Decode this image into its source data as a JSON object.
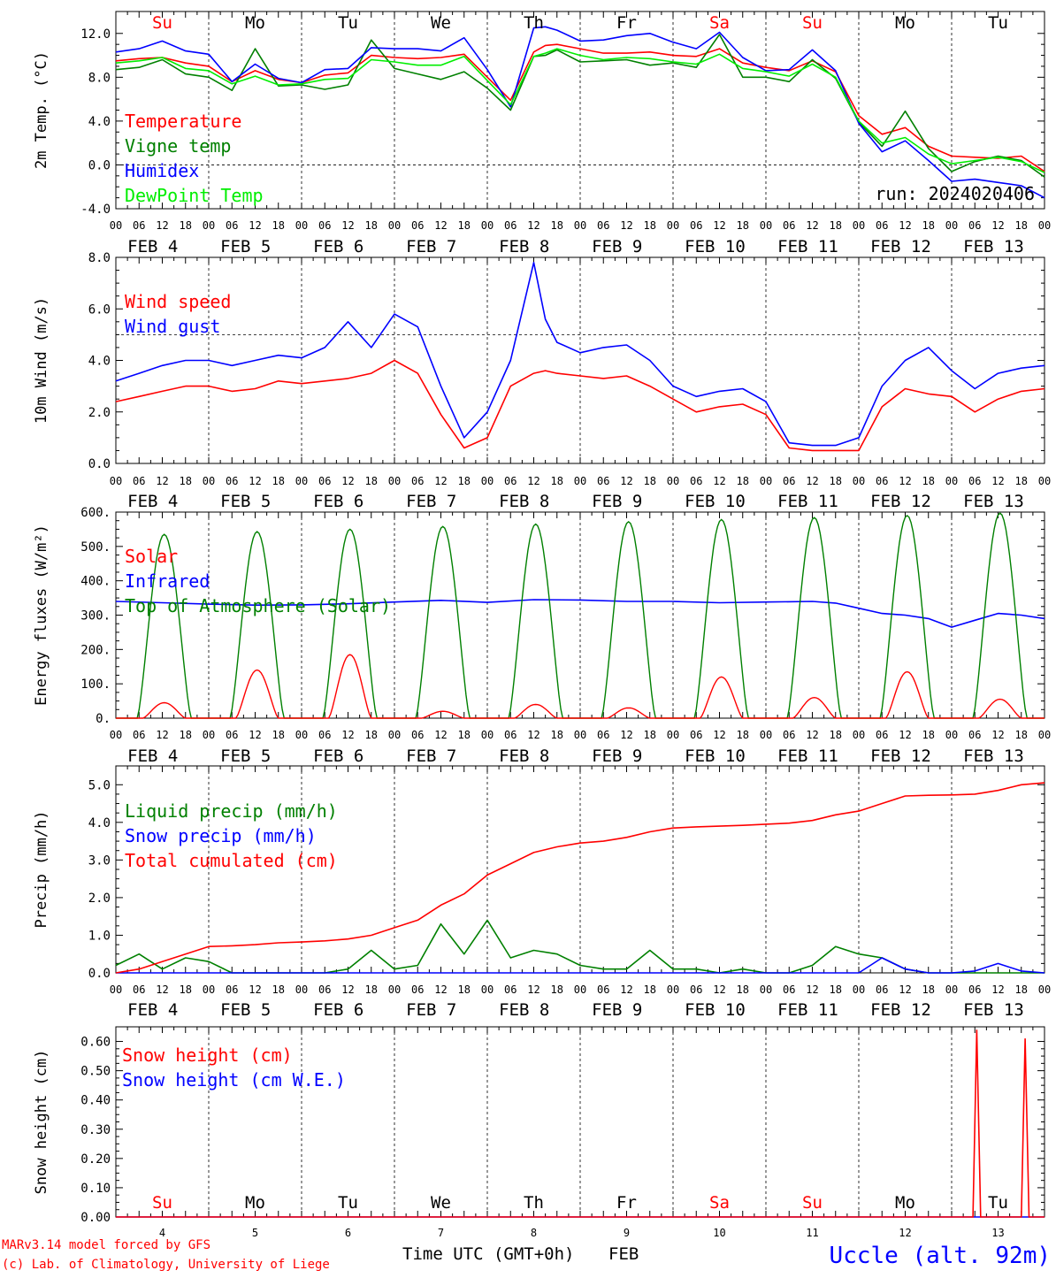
{
  "site": "Uccle (alt. 92m)",
  "credits": [
    "MARv3.14 model forced by GFS",
    "(c) Lab. of Climatology, University of Liege"
  ],
  "xaxis_title": "Time UTC (GMT+0h)",
  "month": "FEB",
  "days": [
    {
      "date": "FEB  4",
      "dom": "4",
      "weekday": "Su",
      "weekend": true
    },
    {
      "date": "FEB  5",
      "dom": "5",
      "weekday": "Mo",
      "weekend": false
    },
    {
      "date": "FEB  6",
      "dom": "6",
      "weekday": "Tu",
      "weekend": false
    },
    {
      "date": "FEB  7",
      "dom": "7",
      "weekday": "We",
      "weekend": false
    },
    {
      "date": "FEB  8",
      "dom": "8",
      "weekday": "Th",
      "weekend": false
    },
    {
      "date": "FEB  9",
      "dom": "9",
      "weekday": "Fr",
      "weekend": false
    },
    {
      "date": "FEB 10",
      "dom": "10",
      "weekday": "Sa",
      "weekend": true
    },
    {
      "date": "FEB 11",
      "dom": "11",
      "weekday": "Su",
      "weekend": true
    },
    {
      "date": "FEB 12",
      "dom": "12",
      "weekday": "Mo",
      "weekend": false
    },
    {
      "date": "FEB 13",
      "dom": "13",
      "weekday": "Tu",
      "weekend": false
    }
  ],
  "hour_labels": [
    "00",
    "06",
    "12",
    "18"
  ],
  "colors": {
    "red": "#ff0000",
    "green": "#008000",
    "blue": "#0000ff",
    "lightgreen": "#00ee00",
    "weekend": "#ff0000",
    "weekday": "#000000",
    "site": "#0000ff"
  },
  "chart_data": [
    {
      "type": "line",
      "id": "temp",
      "ylabel": "2m Temp. (°C)",
      "ylim": [
        -4,
        14
      ],
      "yticks": [
        "-4.0",
        "0.0",
        "4.0",
        "8.0",
        "12.0"
      ],
      "ytick_values": [
        -4,
        0,
        4,
        8,
        12
      ],
      "ref_line": 0,
      "annotation": "run: 2024020406",
      "x": [
        0,
        6,
        12,
        18,
        24,
        30,
        36,
        42,
        48,
        54,
        60,
        66,
        72,
        78,
        84,
        90,
        96,
        102,
        108,
        111,
        114,
        120,
        126,
        132,
        138,
        144,
        150,
        156,
        162,
        168,
        174,
        180,
        186,
        192,
        198,
        204,
        210,
        216,
        222,
        228,
        234,
        240
      ],
      "series": [
        {
          "name": "Temperature",
          "color": "red",
          "values": [
            9.5,
            9.7,
            9.8,
            9.3,
            9.0,
            7.6,
            8.6,
            7.8,
            7.5,
            8.2,
            8.4,
            10.0,
            9.8,
            9.7,
            9.8,
            10.1,
            8.0,
            5.9,
            10.3,
            10.9,
            11.0,
            10.6,
            10.2,
            10.2,
            10.3,
            10.0,
            9.9,
            10.6,
            9.3,
            8.9,
            8.6,
            9.5,
            8.5,
            4.5,
            2.8,
            3.4,
            1.7,
            0.8,
            0.7,
            0.6,
            0.8,
            -0.6
          ]
        },
        {
          "name": "Vigne temp",
          "color": "green",
          "values": [
            8.7,
            8.9,
            9.6,
            8.3,
            8.0,
            6.8,
            10.6,
            7.2,
            7.3,
            6.9,
            7.3,
            11.4,
            8.8,
            8.3,
            7.8,
            8.5,
            7.0,
            5.0,
            9.9,
            10.0,
            10.5,
            9.4,
            9.5,
            9.6,
            9.1,
            9.3,
            8.9,
            11.9,
            8.0,
            8.0,
            7.6,
            9.6,
            7.9,
            3.9,
            1.7,
            4.9,
            1.5,
            -0.6,
            0.3,
            0.8,
            0.4,
            -1.1
          ]
        },
        {
          "name": "Humidex",
          "color": "blue",
          "values": [
            10.3,
            10.6,
            11.3,
            10.4,
            10.1,
            7.6,
            9.2,
            7.9,
            7.5,
            8.7,
            8.8,
            10.7,
            10.6,
            10.6,
            10.4,
            11.6,
            8.7,
            5.3,
            12.5,
            12.6,
            12.3,
            11.3,
            11.4,
            11.8,
            12.0,
            11.2,
            10.6,
            12.1,
            9.8,
            8.6,
            8.7,
            10.5,
            8.6,
            3.8,
            1.2,
            2.2,
            0.4,
            -1.5,
            -1.3,
            -1.6,
            -1.9,
            -3.0
          ]
        },
        {
          "name": "DewPoint Temp",
          "color": "lightgreen",
          "values": [
            9.3,
            9.5,
            9.8,
            8.8,
            8.6,
            7.4,
            8.1,
            7.3,
            7.4,
            7.8,
            7.9,
            9.6,
            9.4,
            9.1,
            9.1,
            9.9,
            7.7,
            5.5,
            9.9,
            10.2,
            10.6,
            10.0,
            9.6,
            9.8,
            9.7,
            9.4,
            9.2,
            10.1,
            8.8,
            8.5,
            8.1,
            9.2,
            8.0,
            4.0,
            2.0,
            2.5,
            1.0,
            0.1,
            0.4,
            0.7,
            0.3,
            -0.7
          ]
        }
      ]
    },
    {
      "type": "line",
      "id": "wind",
      "ylabel": "10m Wind (m/s)",
      "ylim": [
        0,
        8
      ],
      "yticks": [
        "0.0",
        "2.0",
        "4.0",
        "6.0",
        "8.0"
      ],
      "ytick_values": [
        0,
        2,
        4,
        6,
        8
      ],
      "ref_line": 5,
      "x": [
        0,
        6,
        12,
        18,
        24,
        30,
        36,
        42,
        48,
        54,
        60,
        66,
        72,
        78,
        84,
        90,
        96,
        102,
        108,
        111,
        114,
        120,
        126,
        132,
        138,
        144,
        150,
        156,
        162,
        168,
        174,
        180,
        186,
        192,
        198,
        204,
        210,
        216,
        222,
        228,
        234,
        240
      ],
      "series": [
        {
          "name": "Wind speed",
          "color": "red",
          "values": [
            2.4,
            2.6,
            2.8,
            3.0,
            3.0,
            2.8,
            2.9,
            3.2,
            3.1,
            3.2,
            3.3,
            3.5,
            4.0,
            3.5,
            1.9,
            0.6,
            1.0,
            3.0,
            3.5,
            3.6,
            3.5,
            3.4,
            3.3,
            3.4,
            3.0,
            2.5,
            2.0,
            2.2,
            2.3,
            1.9,
            0.6,
            0.5,
            0.5,
            0.5,
            2.2,
            2.9,
            2.7,
            2.6,
            2.0,
            2.5,
            2.8,
            2.9
          ]
        },
        {
          "name": "Wind gust",
          "color": "blue",
          "values": [
            3.2,
            3.5,
            3.8,
            4.0,
            4.0,
            3.8,
            4.0,
            4.2,
            4.1,
            4.5,
            5.5,
            4.5,
            5.8,
            5.3,
            3.0,
            1.0,
            2.0,
            4.0,
            7.8,
            5.6,
            4.7,
            4.3,
            4.5,
            4.6,
            4.0,
            3.0,
            2.6,
            2.8,
            2.9,
            2.4,
            0.8,
            0.7,
            0.7,
            1.0,
            3.0,
            4.0,
            4.5,
            3.6,
            2.9,
            3.5,
            3.7,
            3.8
          ]
        }
      ]
    },
    {
      "type": "line",
      "id": "energy",
      "ylabel": "Energy fluxes (W/m²)",
      "ylim": [
        0,
        600
      ],
      "yticks": [
        "0.",
        "100.",
        "200.",
        "300.",
        "400.",
        "500.",
        "600."
      ],
      "ytick_values": [
        0,
        100,
        200,
        300,
        400,
        500,
        600
      ],
      "solar_peaks": [
        45,
        140,
        185,
        20,
        40,
        30,
        120,
        60,
        135,
        55
      ],
      "toa_peaks": [
        535,
        543,
        550,
        558,
        565,
        572,
        578,
        584,
        590,
        597
      ],
      "infrared": {
        "x": [
          0,
          12,
          24,
          36,
          48,
          60,
          72,
          84,
          96,
          108,
          120,
          132,
          144,
          156,
          168,
          180,
          186,
          192,
          198,
          204,
          210,
          216,
          222,
          228,
          234,
          240
        ],
        "values": [
          340,
          336,
          332,
          329,
          330,
          333,
          338,
          343,
          337,
          345,
          344,
          340,
          340,
          336,
          338,
          340,
          335,
          320,
          305,
          300,
          290,
          265,
          285,
          305,
          300,
          290
        ]
      },
      "series": [
        {
          "name": "Solar",
          "color": "red"
        },
        {
          "name": "Infrared",
          "color": "blue"
        },
        {
          "name": "Top of Atmosphere (Solar)",
          "color": "green"
        }
      ]
    },
    {
      "type": "line",
      "id": "precip",
      "ylabel": "Precip (mm/h)",
      "ylim": [
        0,
        5.5
      ],
      "yticks": [
        "0.0",
        "1.0",
        "2.0",
        "3.0",
        "4.0",
        "5.0"
      ],
      "ytick_values": [
        0,
        1,
        2,
        3,
        4,
        5
      ],
      "x": [
        0,
        6,
        12,
        18,
        24,
        30,
        36,
        42,
        48,
        54,
        60,
        66,
        72,
        78,
        84,
        90,
        96,
        102,
        108,
        114,
        120,
        126,
        132,
        138,
        144,
        150,
        156,
        162,
        168,
        174,
        180,
        186,
        192,
        198,
        204,
        210,
        216,
        222,
        228,
        234,
        240
      ],
      "series": [
        {
          "name": "Liquid precip (mm/h)",
          "color": "green",
          "values": [
            0.2,
            0.5,
            0.1,
            0.4,
            0.3,
            0.0,
            0.0,
            0.0,
            0.0,
            0.0,
            0.1,
            0.6,
            0.1,
            0.2,
            1.3,
            0.5,
            1.4,
            0.4,
            0.6,
            0.5,
            0.2,
            0.1,
            0.1,
            0.6,
            0.1,
            0.1,
            0.0,
            0.1,
            0.0,
            0.0,
            0.2,
            0.7,
            0.5,
            0.4,
            0.1,
            0.0,
            0.0,
            0.0,
            0.0,
            0.0,
            0.0
          ]
        },
        {
          "name": "Snow precip (mm/h)",
          "color": "blue",
          "values": [
            0.0,
            0.0,
            0.0,
            0.0,
            0.0,
            0.0,
            0.0,
            0.0,
            0.0,
            0.0,
            0.0,
            0.0,
            0.0,
            0.0,
            0.0,
            0.0,
            0.0,
            0.0,
            0.0,
            0.0,
            0.0,
            0.0,
            0.0,
            0.0,
            0.0,
            0.0,
            0.0,
            0.0,
            0.0,
            0.0,
            0.0,
            0.0,
            0.0,
            0.4,
            0.1,
            0.0,
            0.0,
            0.05,
            0.25,
            0.05,
            0.0
          ]
        },
        {
          "name": "Total cumulated (cm)",
          "color": "red",
          "values": [
            0.0,
            0.1,
            0.3,
            0.5,
            0.7,
            0.72,
            0.75,
            0.8,
            0.82,
            0.85,
            0.9,
            1.0,
            1.2,
            1.4,
            1.8,
            2.1,
            2.6,
            2.9,
            3.2,
            3.35,
            3.45,
            3.5,
            3.6,
            3.75,
            3.85,
            3.88,
            3.9,
            3.92,
            3.95,
            3.98,
            4.05,
            4.2,
            4.3,
            4.5,
            4.7,
            4.72,
            4.73,
            4.75,
            4.85,
            5.0,
            5.05
          ]
        }
      ]
    },
    {
      "type": "line",
      "id": "snow",
      "ylabel": "Snow height (cm)",
      "ylim": [
        0,
        0.65
      ],
      "yticks": [
        "0.00",
        "0.10",
        "0.20",
        "0.30",
        "0.40",
        "0.50",
        "0.60"
      ],
      "ytick_values": [
        0,
        0.1,
        0.2,
        0.3,
        0.4,
        0.5,
        0.6
      ],
      "spikes": [
        {
          "x": 222.5,
          "value": 0.64
        },
        {
          "x": 235,
          "value": 0.61
        }
      ],
      "series": [
        {
          "name": "Snow height (cm)",
          "color": "red"
        },
        {
          "name": "Snow height (cm W.E.)",
          "color": "blue"
        }
      ]
    }
  ]
}
